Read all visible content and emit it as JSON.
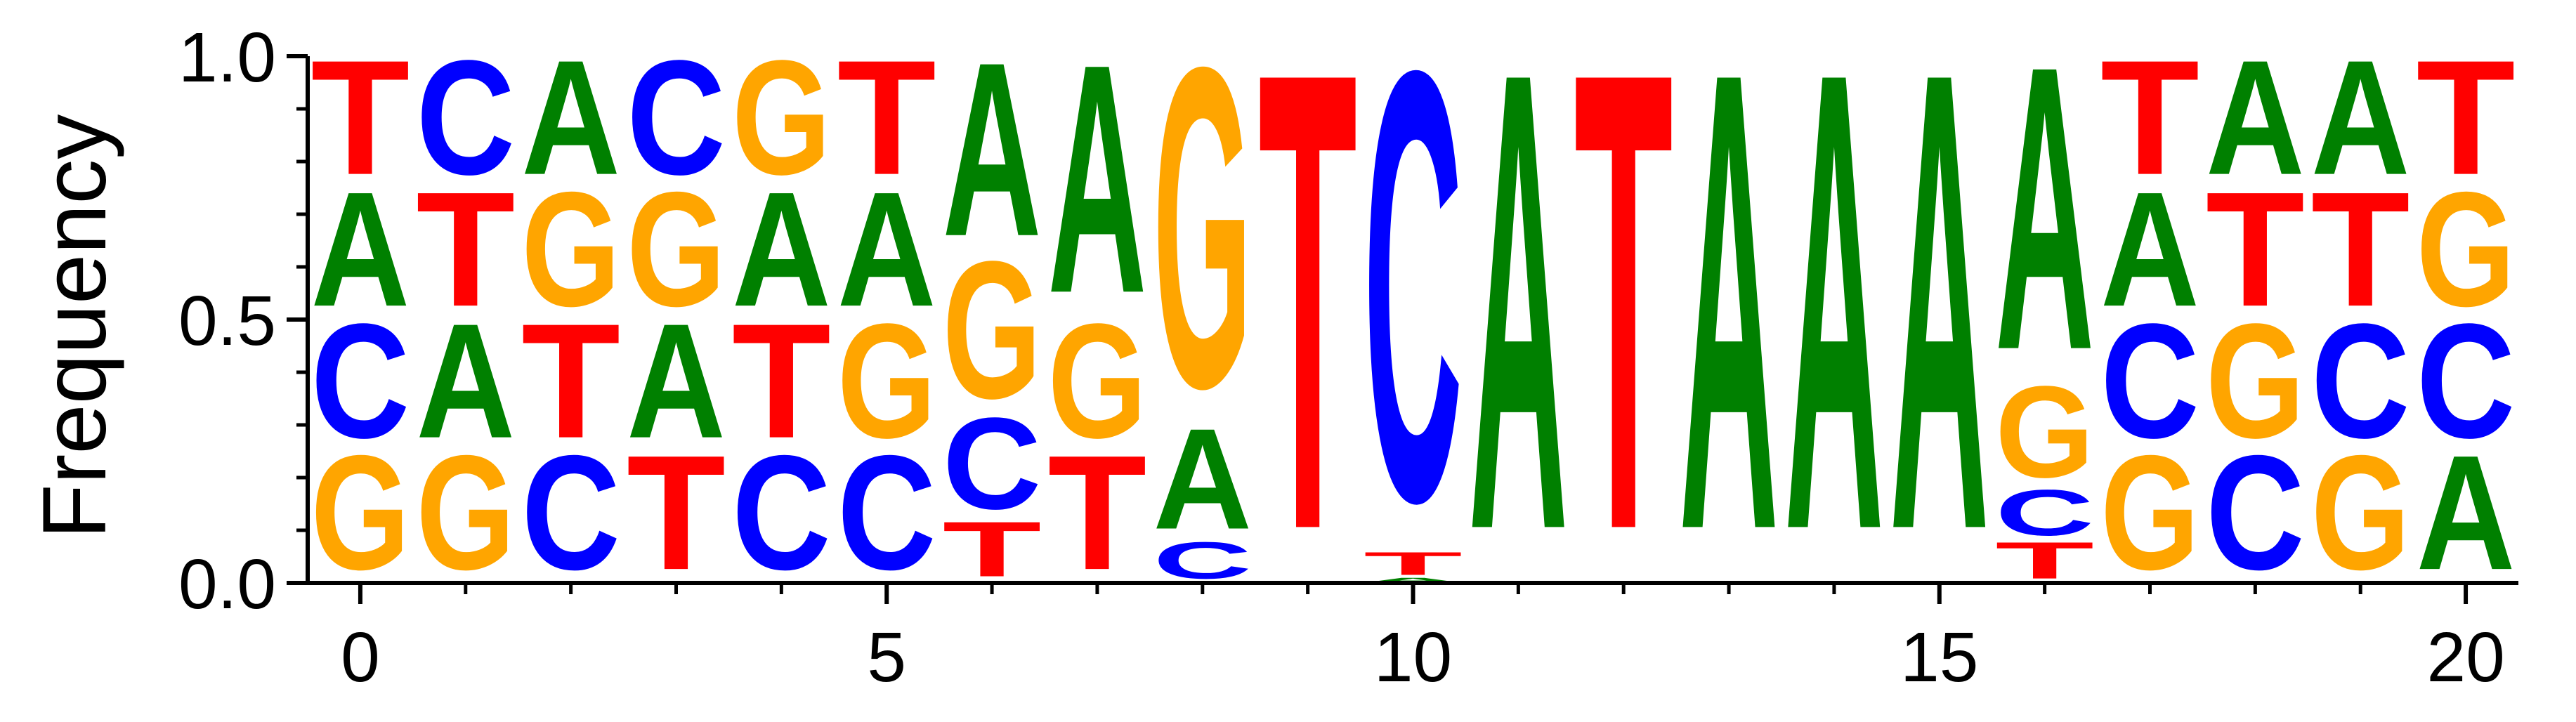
{
  "chart_data": {
    "type": "sequence-logo",
    "ylabel": "Frequency",
    "xlim": [
      -0.5,
      20.5
    ],
    "ylim": [
      0,
      1
    ],
    "x_ticks": [
      "0",
      "5",
      "10",
      "15",
      "20"
    ],
    "y_ticks": [
      "0.0",
      "0.5",
      "1.0"
    ],
    "colors": {
      "A": "#008000",
      "C": "#0000ff",
      "G": "#ffa500",
      "T": "#ff0000"
    },
    "positions": [
      {
        "x": 0,
        "stack": [
          [
            "G",
            0.25
          ],
          [
            "C",
            0.25
          ],
          [
            "A",
            0.25
          ],
          [
            "T",
            0.25
          ]
        ]
      },
      {
        "x": 1,
        "stack": [
          [
            "G",
            0.25
          ],
          [
            "A",
            0.25
          ],
          [
            "T",
            0.25
          ],
          [
            "C",
            0.25
          ]
        ]
      },
      {
        "x": 2,
        "stack": [
          [
            "C",
            0.25
          ],
          [
            "T",
            0.25
          ],
          [
            "G",
            0.25
          ],
          [
            "A",
            0.25
          ]
        ]
      },
      {
        "x": 3,
        "stack": [
          [
            "T",
            0.25
          ],
          [
            "A",
            0.25
          ],
          [
            "G",
            0.25
          ],
          [
            "C",
            0.25
          ]
        ]
      },
      {
        "x": 4,
        "stack": [
          [
            "C",
            0.25
          ],
          [
            "T",
            0.25
          ],
          [
            "A",
            0.25
          ],
          [
            "G",
            0.25
          ]
        ]
      },
      {
        "x": 5,
        "stack": [
          [
            "C",
            0.25
          ],
          [
            "G",
            0.25
          ],
          [
            "A",
            0.25
          ],
          [
            "T",
            0.25
          ]
        ]
      },
      {
        "x": 6,
        "stack": [
          [
            "T",
            0.12
          ],
          [
            "C",
            0.2
          ],
          [
            "G",
            0.3
          ],
          [
            "A",
            0.38
          ]
        ]
      },
      {
        "x": 7,
        "stack": [
          [
            "T",
            0.25
          ],
          [
            "G",
            0.25
          ],
          [
            "A",
            0.5
          ]
        ]
      },
      {
        "x": 8,
        "stack": [
          [
            "C",
            0.08
          ],
          [
            "A",
            0.22
          ],
          [
            "G",
            0.7
          ]
        ]
      },
      {
        "x": 9,
        "stack": [
          [
            "T",
            1.0
          ]
        ]
      },
      {
        "x": 10,
        "stack": [
          [
            "A",
            0.01
          ],
          [
            "T",
            0.05
          ],
          [
            "C",
            0.94
          ]
        ]
      },
      {
        "x": 11,
        "stack": [
          [
            "A",
            1.0
          ]
        ]
      },
      {
        "x": 12,
        "stack": [
          [
            "T",
            1.0
          ]
        ]
      },
      {
        "x": 13,
        "stack": [
          [
            "A",
            1.0
          ]
        ]
      },
      {
        "x": 14,
        "stack": [
          [
            "A",
            1.0
          ]
        ]
      },
      {
        "x": 15,
        "stack": [
          [
            "A",
            1.0
          ]
        ]
      },
      {
        "x": 16,
        "stack": [
          [
            "T",
            0.08
          ],
          [
            "C",
            0.1
          ],
          [
            "G",
            0.2
          ],
          [
            "A",
            0.62
          ]
        ]
      },
      {
        "x": 17,
        "stack": [
          [
            "G",
            0.25
          ],
          [
            "C",
            0.25
          ],
          [
            "A",
            0.25
          ],
          [
            "T",
            0.25
          ]
        ]
      },
      {
        "x": 18,
        "stack": [
          [
            "C",
            0.25
          ],
          [
            "G",
            0.25
          ],
          [
            "T",
            0.25
          ],
          [
            "A",
            0.25
          ]
        ]
      },
      {
        "x": 19,
        "stack": [
          [
            "G",
            0.25
          ],
          [
            "C",
            0.25
          ],
          [
            "T",
            0.25
          ],
          [
            "A",
            0.25
          ]
        ]
      },
      {
        "x": 20,
        "stack": [
          [
            "A",
            0.25
          ],
          [
            "C",
            0.25
          ],
          [
            "G",
            0.25
          ],
          [
            "T",
            0.25
          ]
        ]
      }
    ]
  }
}
